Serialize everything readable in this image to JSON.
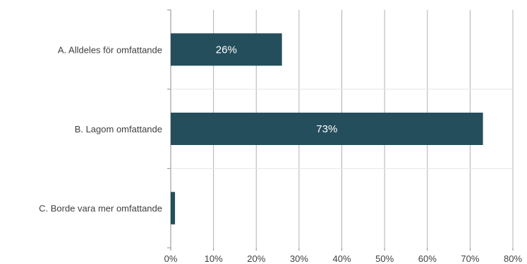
{
  "chart_data": {
    "type": "bar",
    "orientation": "horizontal",
    "title": "",
    "xlabel": "",
    "ylabel": "",
    "categories": [
      "A. Alldeles för omfattande",
      "B. Lagom omfattande",
      "C. Borde vara mer omfattande"
    ],
    "values": [
      26,
      73,
      1
    ],
    "data_labels": [
      "26%",
      "73%",
      ""
    ],
    "xlim": [
      0,
      80
    ],
    "x_ticks": [
      0,
      10,
      20,
      30,
      40,
      50,
      60,
      70,
      80
    ],
    "x_tick_labels": [
      "0%",
      "10%",
      "20%",
      "30%",
      "40%",
      "50%",
      "60%",
      "70%",
      "80%"
    ],
    "grid": "vertical",
    "legend": "none",
    "bar_color": "#244e5c",
    "grid_color": "#b0b0b0"
  }
}
